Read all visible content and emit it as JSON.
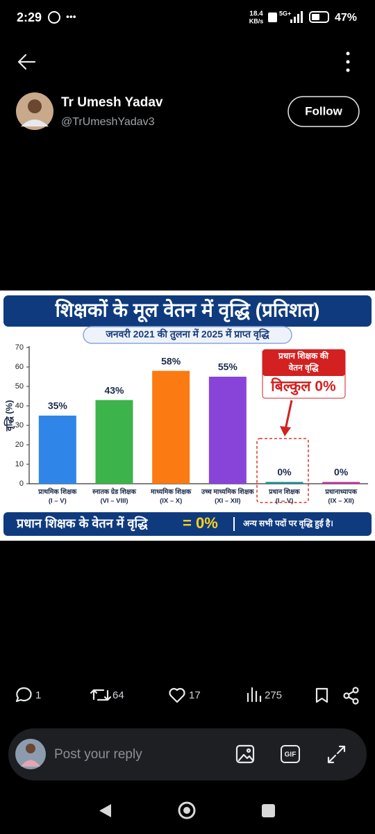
{
  "status_bar": {
    "time": "2:29",
    "network_speed": "18.4",
    "network_speed_unit": "KB/s",
    "network": "5G+",
    "battery": "47%"
  },
  "author": {
    "name": "Tr Umesh Yadav",
    "handle": "@TrUmeshYadav3",
    "follow_button": "Follow"
  },
  "chart_data": {
    "type": "bar",
    "title": "शिक्षकों के मूल वेतन में वृद्धि (प्रतिशत)",
    "subtitle": "जनवरी 2021 की तुलना में 2025 में प्राप्त वृद्धि",
    "y_label": "वृद्धि (%)",
    "categories": [
      [
        "प्राथमिक शिक्षक",
        "(I – V)"
      ],
      [
        "स्नातक ग्रेड शिक्षक",
        "(VI – VIII)"
      ],
      [
        "माध्यमिक शिक्षक",
        "(IX – X)"
      ],
      [
        "उच्च माध्यमिक शिक्षक",
        "(XI – XII)"
      ],
      [
        "प्रधान शिक्षक",
        "(I – V)"
      ],
      [
        "प्रधानाध्यापक",
        "(IX – XII)"
      ]
    ],
    "values": [
      35,
      43,
      58,
      55,
      0,
      0
    ],
    "value_labels": [
      "35%",
      "43%",
      "58%",
      "55%",
      "0%",
      "0%"
    ],
    "colors": [
      "#2f86e8",
      "#3cb44b",
      "#fb7a12",
      "#8844d8",
      "#14908c",
      "#c2309e"
    ],
    "ylim": [
      0,
      70
    ],
    "yticks": [
      0,
      10,
      20,
      30,
      40,
      50,
      60,
      70
    ],
    "annotation": {
      "lines": [
        "प्रधान शिक्षक की",
        "वेतन वृद्धि"
      ],
      "highlight": "बिल्कुल 0%"
    },
    "footer": {
      "left": "प्रधान शिक्षक के वेतन में वृद्धि",
      "highlight": "= 0%",
      "right": "अन्य सभी पदों पर वृद्धि हुई है।"
    }
  },
  "actions": {
    "replies": 1,
    "reposts": 64,
    "likes": 17,
    "views": 275
  },
  "reply_box": {
    "placeholder": "Post your reply",
    "gif_button": "GIF"
  }
}
